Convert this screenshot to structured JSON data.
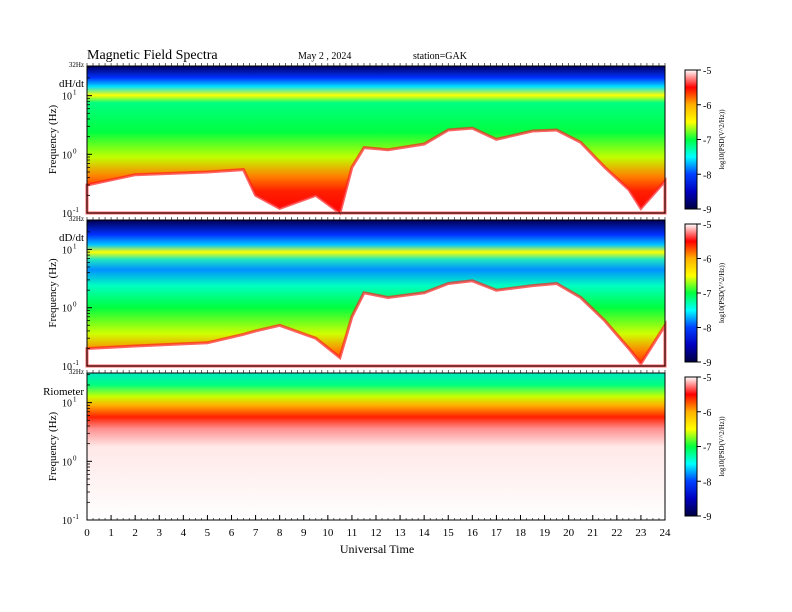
{
  "header": {
    "title": "Magnetic  Field  Spectra",
    "date": "May 2  , 2024",
    "station": "station=GAK"
  },
  "chart_data": {
    "type": "heatmap",
    "xlabel": "Universal  Time",
    "x_ticks": [
      "0",
      "1",
      "2",
      "3",
      "4",
      "5",
      "6",
      "7",
      "8",
      "9",
      "10",
      "11",
      "12",
      "13",
      "14",
      "15",
      "16",
      "17",
      "18",
      "19",
      "20",
      "21",
      "22",
      "23",
      "24"
    ],
    "xlim": [
      0,
      24
    ],
    "ylim_hz": [
      0.1,
      32
    ],
    "y_scale": "log",
    "colorbar": {
      "label": "log10(PSD(V^2/Hz))",
      "ticks": [
        "-5",
        "-6",
        "-7",
        "-8",
        "-9"
      ],
      "range": [
        -9,
        -5
      ],
      "colormap": [
        "#ffffff",
        "#ff0000",
        "#ffb000",
        "#ffff00",
        "#00ff40",
        "#00ffff",
        "#0040ff",
        "#0000c0",
        "#000040"
      ]
    },
    "panels": [
      {
        "name": "dH/dt",
        "ylabel": "Frequency  (Hz)",
        "top_label": "32Hz",
        "y_ticks": [
          {
            "base": "10",
            "exp": "1",
            "hz": 10
          },
          {
            "base": "10",
            "exp": "0",
            "hz": 1
          },
          {
            "base": "10",
            "exp": "-1",
            "hz": 0.1
          }
        ]
      },
      {
        "name": "dD/dt",
        "ylabel": "Frequency  (Hz)",
        "top_label": "32Hz",
        "y_ticks": [
          {
            "base": "10",
            "exp": "1",
            "hz": 10
          },
          {
            "base": "10",
            "exp": "0",
            "hz": 1
          },
          {
            "base": "10",
            "exp": "-1",
            "hz": 0.1
          }
        ]
      },
      {
        "name": "Riometer",
        "ylabel": "Frequency  (Hz)",
        "top_label": "32Hz",
        "y_ticks": [
          {
            "base": "10",
            "exp": "1",
            "hz": 10
          },
          {
            "base": "10",
            "exp": "0",
            "hz": 1
          },
          {
            "base": "10",
            "exp": "-1",
            "hz": 0.1
          }
        ]
      }
    ]
  }
}
